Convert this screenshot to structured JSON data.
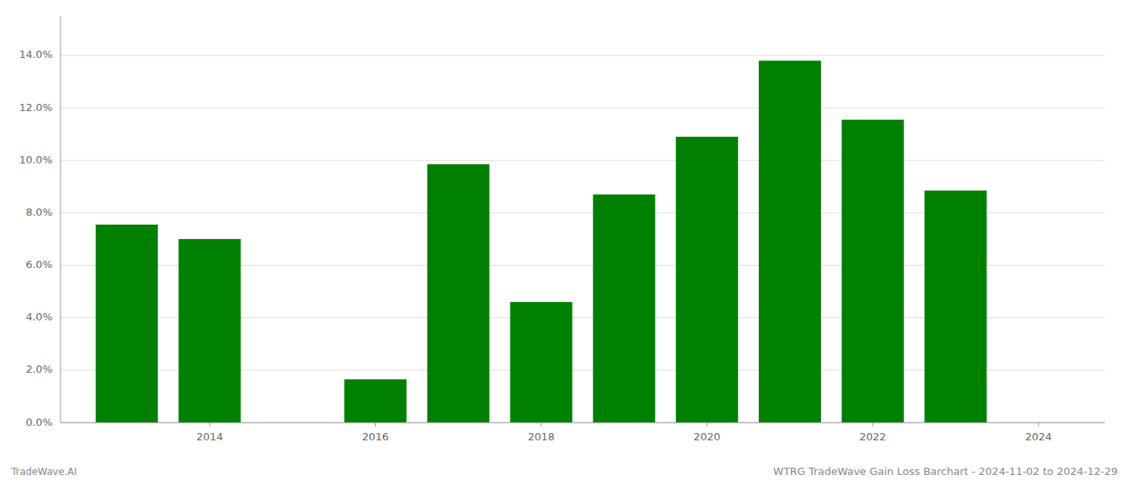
{
  "chart_data": {
    "type": "bar",
    "title": "WTRG TradeWave Gain Loss Barchart - 2024-11-02 to 2024-12-29",
    "annotations": [
      "TradeWave.AI"
    ],
    "x": [
      2013,
      2014,
      2016,
      2017,
      2018,
      2019,
      2020,
      2021,
      2022,
      2023
    ],
    "values": [
      0.0755,
      0.07,
      0.0165,
      0.0985,
      0.046,
      0.087,
      0.109,
      0.138,
      0.1155,
      0.0885
    ],
    "color": "#008000",
    "xlim": [
      2012.2,
      2024.8
    ],
    "xticks": [
      2014,
      2016,
      2018,
      2020,
      2022,
      2024
    ],
    "ylim": [
      0,
      0.155
    ],
    "yticks": [
      {
        "value": 0.0,
        "label": "0.0%"
      },
      {
        "value": 0.02,
        "label": "2.0%"
      },
      {
        "value": 0.04,
        "label": "4.0%"
      },
      {
        "value": 0.06,
        "label": "6.0%"
      },
      {
        "value": 0.08,
        "label": "8.0%"
      },
      {
        "value": 0.1,
        "label": "10.0%"
      },
      {
        "value": 0.12,
        "label": "12.0%"
      },
      {
        "value": 0.14,
        "label": "14.0%"
      }
    ],
    "grid": true
  }
}
